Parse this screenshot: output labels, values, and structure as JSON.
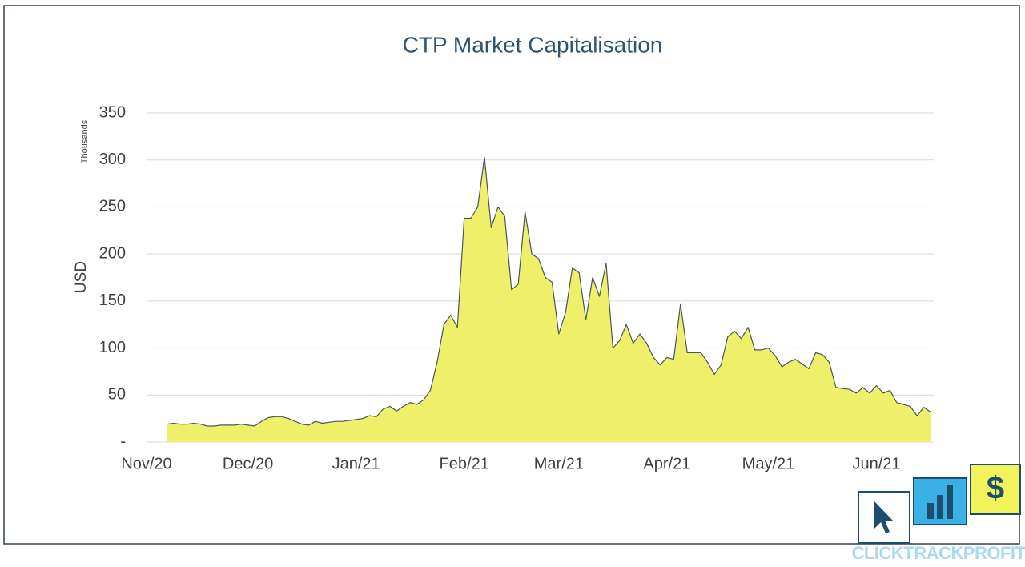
{
  "chart_data": {
    "type": "area",
    "title": "CTP Market Capitalisation",
    "y_label": "USD",
    "y_unit_label": "Thousands",
    "brand": "CLICKTRACKPROFIT",
    "color": "#eef06a",
    "line_color": "#4a5560",
    "grid": true,
    "ylim": [
      0,
      350
    ],
    "yticks": [
      {
        "value": 0,
        "label": "-"
      },
      50,
      100,
      150,
      200,
      250,
      300,
      350
    ],
    "categories": [
      "Nov/20",
      null,
      null,
      null,
      null,
      null,
      null,
      null,
      null,
      null,
      null,
      null,
      null,
      null,
      null,
      "Dec/20",
      null,
      null,
      null,
      null,
      null,
      null,
      null,
      null,
      null,
      null,
      null,
      null,
      null,
      null,
      null,
      "Jan/21",
      null,
      null,
      null,
      null,
      null,
      null,
      null,
      null,
      null,
      null,
      null,
      null,
      null,
      null,
      null,
      "Feb/21",
      null,
      null,
      null,
      null,
      null,
      null,
      null,
      null,
      null,
      null,
      null,
      null,
      null,
      "Mar/21",
      null,
      null,
      null,
      null,
      null,
      null,
      null,
      null,
      null,
      null,
      null,
      null,
      null,
      null,
      null,
      "Apr/21",
      null,
      null,
      null,
      null,
      null,
      null,
      null,
      null,
      null,
      null,
      null,
      null,
      null,
      null,
      "May/21",
      null,
      null,
      null,
      null,
      null,
      null,
      null,
      null,
      null,
      null,
      null,
      null,
      null,
      null,
      null,
      "Jun/21",
      null,
      null,
      null,
      null,
      null,
      null,
      null,
      null
    ],
    "values": [
      null,
      null,
      null,
      19,
      20,
      19,
      19,
      20,
      19,
      17,
      17,
      18,
      18,
      18,
      19,
      18,
      17,
      22,
      26,
      27,
      27,
      25,
      22,
      19,
      18,
      22,
      20,
      21,
      22,
      22,
      23,
      24,
      25,
      28,
      27,
      35,
      38,
      33,
      38,
      42,
      40,
      45,
      55,
      85,
      125,
      135,
      122,
      238,
      238,
      250,
      303,
      228,
      250,
      240,
      162,
      168,
      245,
      200,
      195,
      175,
      170,
      115,
      138,
      185,
      180,
      130,
      175,
      155,
      190,
      100,
      108,
      125,
      105,
      115,
      105,
      90,
      82,
      90,
      88,
      147,
      95,
      95,
      95,
      85,
      72,
      82,
      112,
      118,
      110,
      122,
      98,
      98,
      100,
      92,
      80,
      85,
      88,
      83,
      78,
      95,
      93,
      85,
      58,
      57,
      56,
      52,
      58,
      52,
      60,
      52,
      55,
      42,
      40,
      38,
      28,
      37,
      32
    ]
  }
}
